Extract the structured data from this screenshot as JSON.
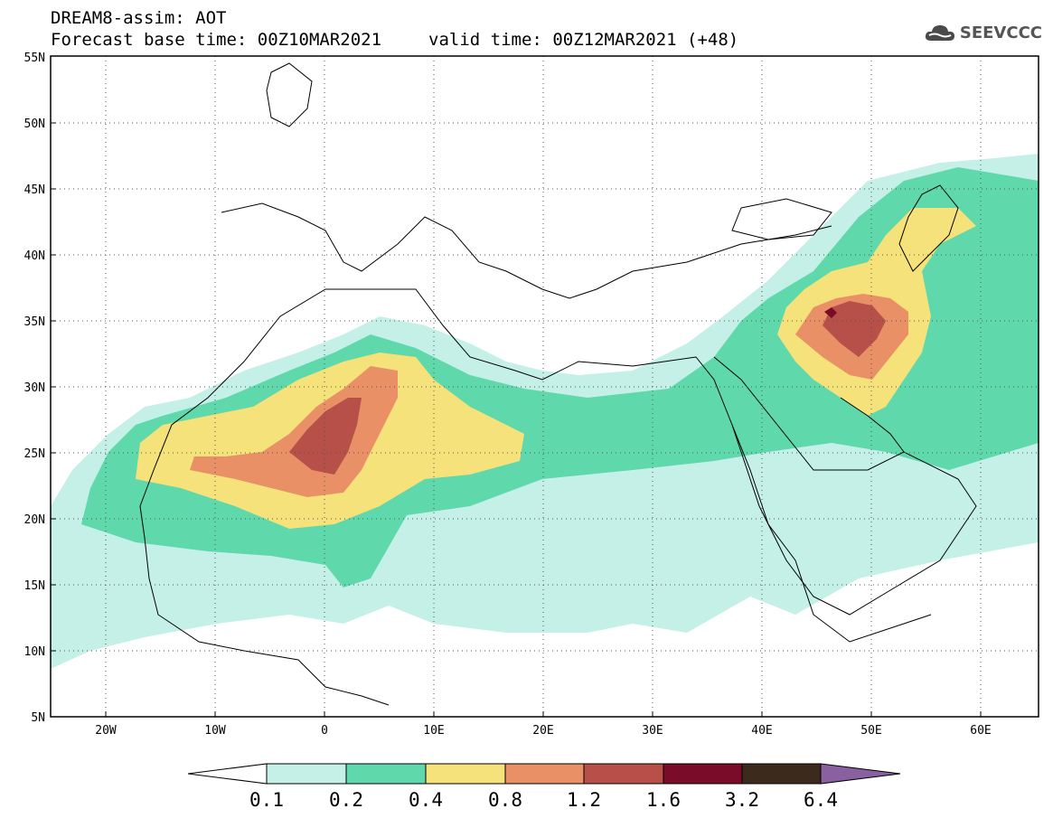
{
  "header": {
    "title": "DREAM8-assim: AOT",
    "forecast_base": "Forecast base time: 00Z10MAR2021",
    "valid_time": "valid time: 00Z12MAR2021 (+48)"
  },
  "logo": {
    "text": "SEEVCCC",
    "icon": "cloud-icon"
  },
  "map": {
    "projection": "lat-lon",
    "lon_range": [
      -25,
      65
    ],
    "lat_range": [
      5,
      55
    ],
    "lon_ticks": [
      "20W",
      "10W",
      "0",
      "10E",
      "20E",
      "30E",
      "40E",
      "50E",
      "60E"
    ],
    "lat_ticks": [
      "5N",
      "10N",
      "15N",
      "20N",
      "25N",
      "30N",
      "35N",
      "40N",
      "45N",
      "50N",
      "55N"
    ],
    "gridlines": "dotted"
  },
  "colorbar": {
    "levels": [
      "0.1",
      "0.2",
      "0.4",
      "0.8",
      "1.2",
      "1.6",
      "3.2",
      "6.4"
    ],
    "colors": [
      "#ffffff",
      "#c4f0e8",
      "#5fd8ac",
      "#f5e27a",
      "#e99066",
      "#b65048",
      "#7a0c2a",
      "#3c2a1c",
      "#8a60a0"
    ]
  }
}
